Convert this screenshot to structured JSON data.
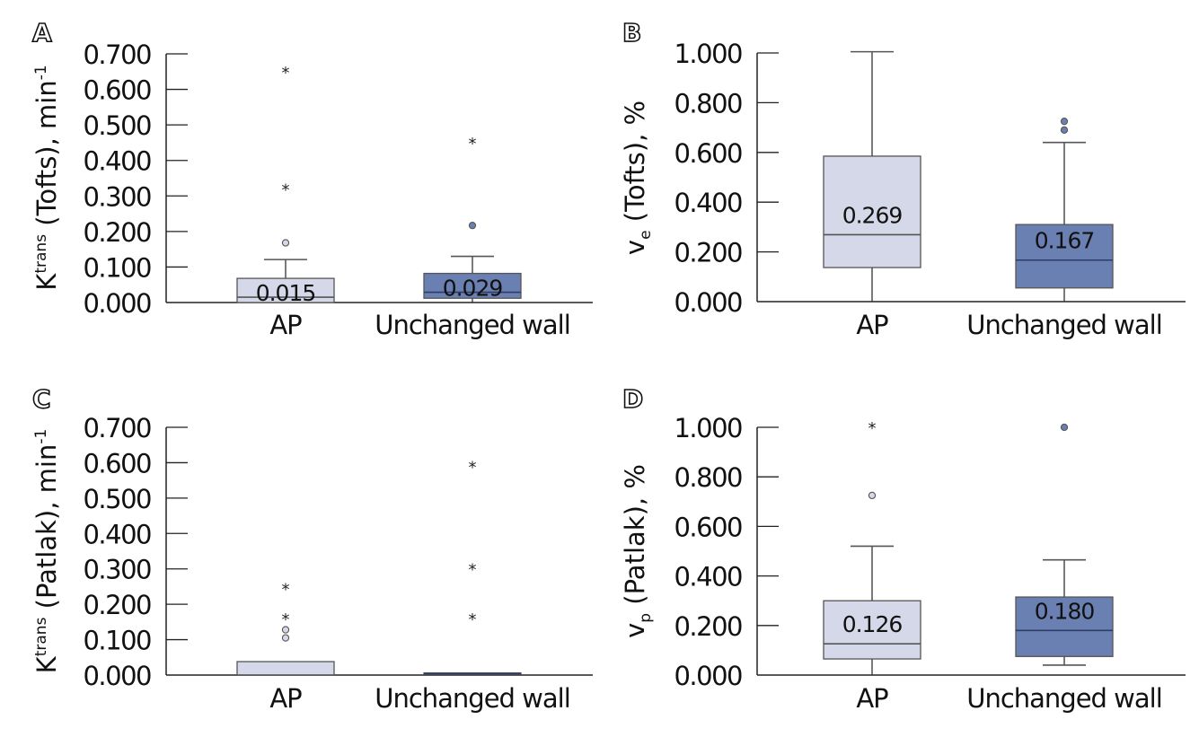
{
  "colors": {
    "ap_fill": "#d4d8e8",
    "unchanged_fill": "#6b80b2",
    "box_stroke": "#555555",
    "axis": "#222222"
  },
  "chart_data": [
    {
      "panel": "A",
      "type": "box",
      "ylabel_main": "K",
      "ylabel_sup": "trans",
      "ylabel_rest": " (Tofts), min",
      "ylabel_exp": "-1",
      "ylim": [
        0,
        0.7
      ],
      "yticks": [
        "0.000",
        "0.100",
        "0.200",
        "0.300",
        "0.400",
        "0.500",
        "0.600",
        "0.700"
      ],
      "ytick_values": [
        0,
        0.1,
        0.2,
        0.3,
        0.4,
        0.5,
        0.6,
        0.7
      ],
      "categories": [
        "AP",
        "Unchanged wall"
      ],
      "boxes": [
        {
          "name": "AP",
          "whisker_low": 0.0,
          "q1": 0.0,
          "median": 0.015,
          "q3": 0.068,
          "whisker_high": 0.121,
          "median_label": "0.015",
          "outliers_circle": [
            0.168
          ],
          "outliers_star": [
            0.32,
            0.65
          ]
        },
        {
          "name": "Unchanged wall",
          "whisker_low": 0.0,
          "q1": 0.012,
          "median": 0.029,
          "q3": 0.082,
          "whisker_high": 0.13,
          "median_label": "0.029",
          "outliers_circle": [
            0.217
          ],
          "outliers_star": [
            0.45
          ]
        }
      ]
    },
    {
      "panel": "B",
      "type": "box",
      "ylabel_main": "v",
      "ylabel_sub": "e",
      "ylabel_rest": " (Tofts), %",
      "ylim": [
        0,
        1.0
      ],
      "yticks": [
        "0.000",
        "0.200",
        "0.400",
        "0.600",
        "0.800",
        "1.000"
      ],
      "ytick_values": [
        0,
        0.2,
        0.4,
        0.6,
        0.8,
        1.0
      ],
      "categories": [
        "AP",
        "Unchanged wall"
      ],
      "boxes": [
        {
          "name": "AP",
          "whisker_low": 0.0,
          "q1": 0.137,
          "median": 0.269,
          "q3": 0.585,
          "whisker_high": 1.005,
          "median_label": "0.269",
          "outliers_circle": [],
          "outliers_star": []
        },
        {
          "name": "Unchanged wall",
          "whisker_low": 0.0,
          "q1": 0.055,
          "median": 0.167,
          "q3": 0.31,
          "whisker_high": 0.64,
          "median_label": "0.167",
          "outliers_circle": [
            0.69,
            0.725
          ],
          "outliers_star": []
        }
      ]
    },
    {
      "panel": "C",
      "type": "box",
      "ylabel_main": "K",
      "ylabel_sup": "trans",
      "ylabel_rest": " (Patlak), min",
      "ylabel_exp": "-1",
      "ylim": [
        0,
        0.7
      ],
      "yticks": [
        "0.000",
        "0.100",
        "0.200",
        "0.300",
        "0.400",
        "0.500",
        "0.600",
        "0.700"
      ],
      "ytick_values": [
        0,
        0.1,
        0.2,
        0.3,
        0.4,
        0.5,
        0.6,
        0.7
      ],
      "categories": [
        "AP",
        "Unchanged wall"
      ],
      "boxes": [
        {
          "name": "AP",
          "whisker_low": 0.0,
          "q1": 0.0,
          "median": 0.0,
          "q3": 0.038,
          "whisker_high": 0.038,
          "median_label": "",
          "outliers_circle": [
            0.105,
            0.128
          ],
          "outliers_star": [
            0.16,
            0.245
          ]
        },
        {
          "name": "Unchanged wall",
          "whisker_low": 0.0,
          "q1": 0.002,
          "median": 0.004,
          "q3": 0.006,
          "whisker_high": 0.006,
          "median_label": "",
          "outliers_circle": [],
          "outliers_star": [
            0.16,
            0.3,
            0.59
          ]
        }
      ]
    },
    {
      "panel": "D",
      "type": "box",
      "ylabel_main": "v",
      "ylabel_sub": "p",
      "ylabel_rest": " (Patlak), %",
      "ylim": [
        0,
        1.0
      ],
      "yticks": [
        "0.000",
        "0.200",
        "0.400",
        "0.600",
        "0.800",
        "1.000"
      ],
      "ytick_values": [
        0,
        0.2,
        0.4,
        0.6,
        0.8,
        1.0
      ],
      "categories": [
        "AP",
        "Unchanged wall"
      ],
      "boxes": [
        {
          "name": "AP",
          "whisker_low": 0.0,
          "q1": 0.065,
          "median": 0.126,
          "q3": 0.3,
          "whisker_high": 0.52,
          "median_label": "0.126",
          "outliers_circle": [
            0.725
          ],
          "outliers_star": [
            1.0
          ]
        },
        {
          "name": "Unchanged wall",
          "whisker_low": 0.04,
          "q1": 0.075,
          "median": 0.18,
          "q3": 0.315,
          "whisker_high": 0.465,
          "median_label": "0.180",
          "outliers_circle": [
            1.0
          ],
          "outliers_star": []
        }
      ]
    }
  ]
}
